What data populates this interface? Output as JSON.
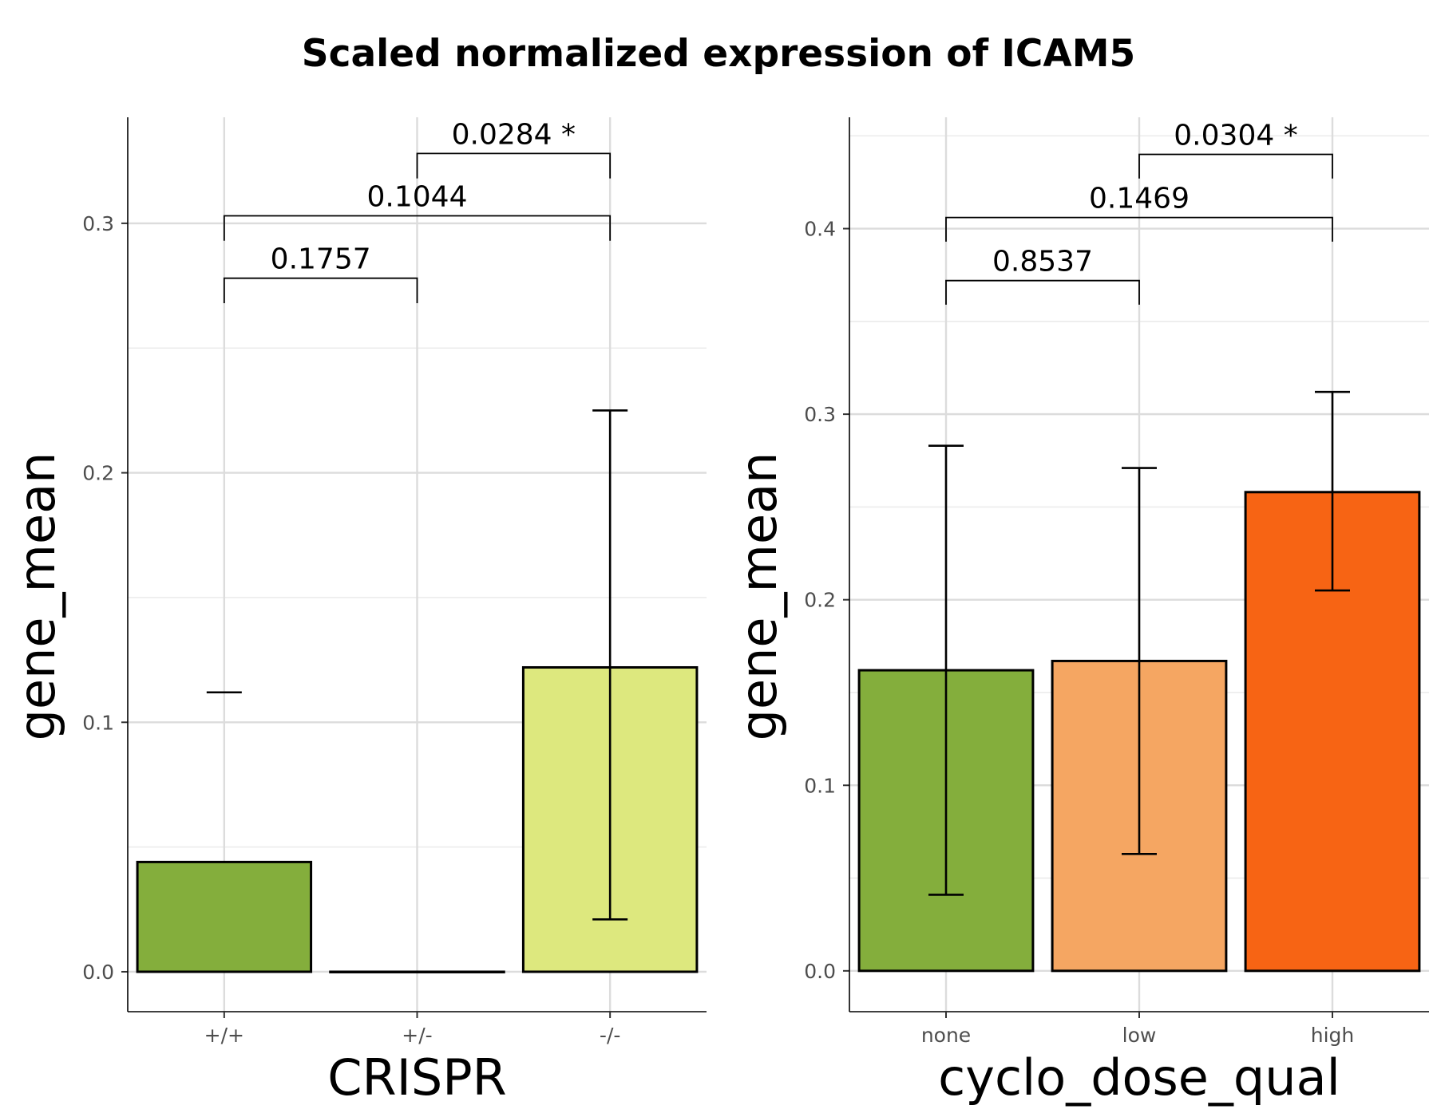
{
  "figure": {
    "title": "Scaled normalized expression of ICAM5"
  },
  "chart_data": [
    {
      "type": "bar",
      "xlabel": "CRISPR",
      "ylabel": "gene_mean",
      "categories": [
        "+/+",
        "+/-",
        "-/-"
      ],
      "values": [
        0.044,
        0.0,
        0.122
      ],
      "error_lower": [
        null,
        null,
        0.021
      ],
      "error_upper": [
        0.112,
        null,
        0.225
      ],
      "colors": [
        "#84ae3c",
        "#84ae3c",
        "#dde87e"
      ],
      "ylim": [
        -0.016,
        0.3425
      ],
      "yticks": [
        0.0,
        0.1,
        0.2,
        0.3
      ],
      "ytick_labels": [
        "0.0",
        "0.1",
        "0.2",
        "0.3"
      ],
      "grid": true,
      "comparisons": [
        {
          "from": 0,
          "to": 1,
          "label": "0.1757",
          "y": 0.278,
          "tick_low": 0.268
        },
        {
          "from": 0,
          "to": 2,
          "label": "0.1044",
          "y": 0.303,
          "tick_low": 0.293
        },
        {
          "from": 1,
          "to": 2,
          "label": "0.0284 *",
          "y": 0.328,
          "tick_low": 0.318
        }
      ]
    },
    {
      "type": "bar",
      "xlabel": "cyclo_dose_qual",
      "ylabel": "gene_mean",
      "categories": [
        "none",
        "low",
        "high"
      ],
      "values": [
        0.162,
        0.167,
        0.258
      ],
      "error_lower": [
        0.041,
        0.063,
        0.205
      ],
      "error_upper": [
        0.283,
        0.271,
        0.312
      ],
      "colors": [
        "#84ae3c",
        "#f5a662",
        "#f76414"
      ],
      "ylim": [
        -0.022,
        0.46
      ],
      "yticks": [
        0.0,
        0.1,
        0.2,
        0.3,
        0.4
      ],
      "ytick_labels": [
        "0.0",
        "0.1",
        "0.2",
        "0.3",
        "0.4"
      ],
      "grid": true,
      "comparisons": [
        {
          "from": 0,
          "to": 1,
          "label": "0.8537",
          "y": 0.372,
          "tick_low": 0.359
        },
        {
          "from": 0,
          "to": 2,
          "label": "0.1469",
          "y": 0.406,
          "tick_low": 0.393
        },
        {
          "from": 1,
          "to": 2,
          "label": "0.0304 *",
          "y": 0.44,
          "tick_low": 0.427
        }
      ]
    }
  ]
}
